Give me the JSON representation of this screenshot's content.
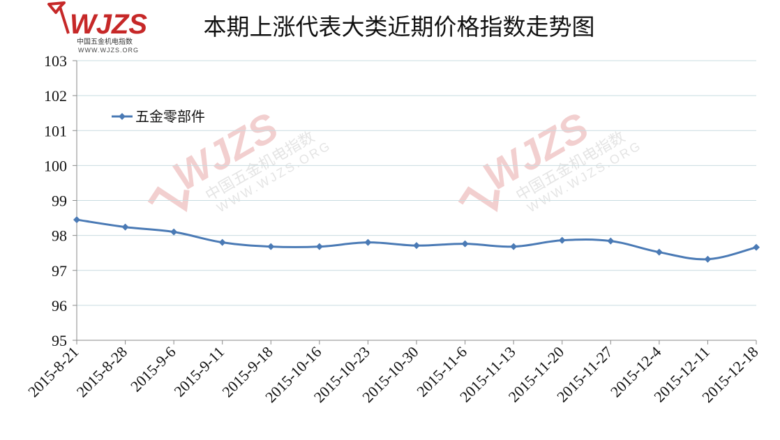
{
  "chart_data": {
    "type": "line",
    "title": "本期上涨代表大类近期价格指数走势图",
    "xlabel": "",
    "ylabel": "",
    "categories": [
      "2015-8-21",
      "2015-8-28",
      "2015-9-6",
      "2015-9-11",
      "2015-9-18",
      "2015-10-16",
      "2015-10-23",
      "2015-10-30",
      "2015-11-6",
      "2015-11-13",
      "2015-11-20",
      "2015-11-27",
      "2015-12-4",
      "2015-12-11",
      "2015-12-18"
    ],
    "series": [
      {
        "name": "五金零部件",
        "values": [
          98.45,
          98.24,
          98.1,
          97.8,
          97.68,
          97.68,
          97.8,
          97.71,
          97.76,
          97.68,
          97.86,
          97.84,
          97.52,
          97.32,
          97.66
        ]
      }
    ],
    "ylim": [
      95,
      103
    ],
    "yticks": [
      "95",
      "96",
      "97",
      "98",
      "99",
      "100",
      "101",
      "102",
      "103"
    ],
    "grid": true,
    "legend_position": "top-left",
    "colors": {
      "series": "#4a7ab5",
      "grid": "#c8dce0",
      "axis": "#8a8a8a",
      "brand": "#c62828"
    }
  },
  "logo": {
    "mark": "WJZS",
    "cn_name": "中国五金机电指数",
    "url": "WWW.WJZS.ORG"
  },
  "watermark": {
    "mark": "WJZS",
    "cn_name": "中国五金机电指数",
    "url": "WWW.WJZS.ORG"
  }
}
